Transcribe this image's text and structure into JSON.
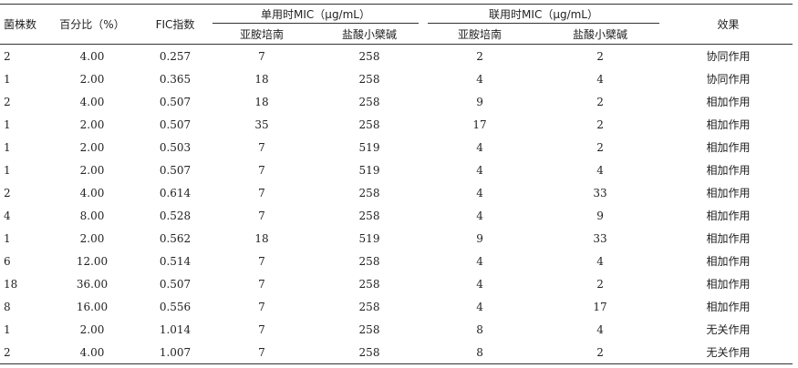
{
  "table": {
    "headers": {
      "strains": "菌株数",
      "percent": "百分比（%）",
      "fic": "FIC指数",
      "single_group": "单用时MIC（μg/mL）",
      "combined_group": "联用时MIC（μg/mL）",
      "effect": "效果",
      "single_sub": [
        "亚胺培南",
        "盐酸小檗碱"
      ],
      "combined_sub": [
        "亚胺培南",
        "盐酸小檗碱"
      ]
    },
    "rows": [
      [
        "2",
        "4.00",
        "0.257",
        "7",
        "258",
        "2",
        "2",
        "协同作用"
      ],
      [
        "1",
        "2.00",
        "0.365",
        "18",
        "258",
        "4",
        "4",
        "协同作用"
      ],
      [
        "2",
        "4.00",
        "0.507",
        "18",
        "258",
        "9",
        "2",
        "相加作用"
      ],
      [
        "1",
        "2.00",
        "0.507",
        "35",
        "258",
        "17",
        "2",
        "相加作用"
      ],
      [
        "1",
        "2.00",
        "0.503",
        "7",
        "519",
        "4",
        "2",
        "相加作用"
      ],
      [
        "1",
        "2.00",
        "0.507",
        "7",
        "519",
        "4",
        "4",
        "相加作用"
      ],
      [
        "2",
        "4.00",
        "0.614",
        "7",
        "258",
        "4",
        "33",
        "相加作用"
      ],
      [
        "4",
        "8.00",
        "0.528",
        "7",
        "258",
        "4",
        "9",
        "相加作用"
      ],
      [
        "1",
        "2.00",
        "0.562",
        "18",
        "519",
        "9",
        "33",
        "相加作用"
      ],
      [
        "6",
        "12.00",
        "0.514",
        "7",
        "258",
        "4",
        "4",
        "相加作用"
      ],
      [
        "18",
        "36.00",
        "0.507",
        "7",
        "258",
        "4",
        "2",
        "相加作用"
      ],
      [
        "8",
        "16.00",
        "0.556",
        "7",
        "258",
        "4",
        "17",
        "相加作用"
      ],
      [
        "1",
        "2.00",
        "1.014",
        "7",
        "258",
        "8",
        "4",
        "无关作用"
      ],
      [
        "2",
        "4.00",
        "1.007",
        "7",
        "258",
        "8",
        "2",
        "无关作用"
      ]
    ]
  }
}
